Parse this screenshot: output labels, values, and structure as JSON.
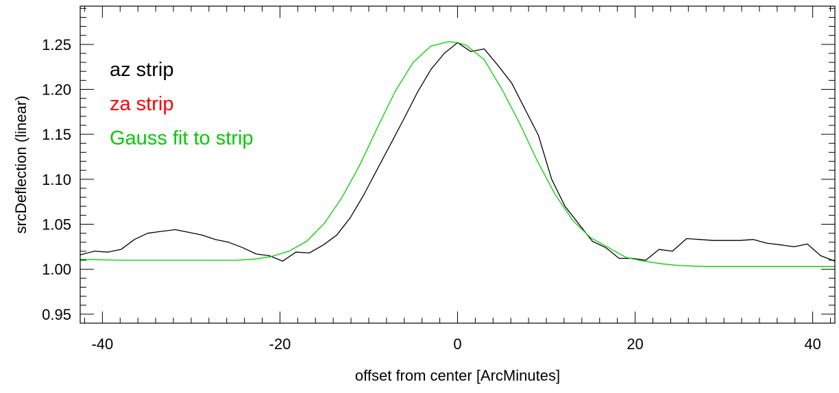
{
  "chart_data": {
    "type": "line",
    "title": "",
    "xlabel": "offset from center [ArcMinutes]",
    "ylabel": "srcDeflection (linear)",
    "xlim": [
      -42.5,
      42.5
    ],
    "ylim": [
      0.94,
      1.2925
    ],
    "x_ticks": [
      -40,
      -20,
      0,
      20,
      40
    ],
    "x_tick_labels": [
      "-40",
      "-20",
      "0",
      "20",
      "40"
    ],
    "x_minor_step": 2,
    "y_ticks": [
      0.95,
      1.0,
      1.05,
      1.1,
      1.15,
      1.2,
      1.25
    ],
    "y_tick_labels": [
      "0.95",
      "1.00",
      "1.05",
      "1.10",
      "1.15",
      "1.20",
      "1.25"
    ],
    "y_minor_step": 0.01,
    "grid": false,
    "legend": {
      "placement": "top-left",
      "entries": [
        {
          "label": "az strip",
          "color": "#000000"
        },
        {
          "label": "za strip",
          "color": "#ff0000"
        },
        {
          "label": "Gauss fit to strip",
          "color": "#00cc00"
        }
      ]
    },
    "series": [
      {
        "name": "az strip",
        "color": "#000000",
        "x": [
          -42.5,
          -40.9,
          -39.4,
          -37.9,
          -36.4,
          -34.9,
          -33.4,
          -31.8,
          -30.3,
          -28.8,
          -27.3,
          -25.8,
          -24.2,
          -22.7,
          -21.2,
          -19.7,
          -18.2,
          -16.7,
          -15.1,
          -13.6,
          -12.1,
          -10.6,
          -9.1,
          -7.6,
          -6.0,
          -4.5,
          -3.0,
          -1.5,
          0.0,
          1.5,
          3.0,
          4.6,
          6.1,
          7.6,
          9.1,
          10.6,
          12.1,
          13.6,
          15.2,
          16.7,
          18.2,
          19.7,
          21.2,
          22.7,
          24.2,
          25.8,
          27.3,
          28.8,
          30.3,
          31.8,
          33.3,
          34.8,
          36.4,
          37.9,
          39.4,
          40.9,
          42.5
        ],
        "y": [
          1.016,
          1.02,
          1.019,
          1.022,
          1.033,
          1.04,
          1.042,
          1.044,
          1.041,
          1.038,
          1.033,
          1.03,
          1.024,
          1.017,
          1.015,
          1.009,
          1.019,
          1.018,
          1.027,
          1.038,
          1.057,
          1.082,
          1.11,
          1.138,
          1.168,
          1.197,
          1.222,
          1.24,
          1.252,
          1.242,
          1.245,
          1.226,
          1.207,
          1.178,
          1.149,
          1.1,
          1.07,
          1.051,
          1.031,
          1.024,
          1.012,
          1.012,
          1.01,
          1.022,
          1.02,
          1.034,
          1.033,
          1.032,
          1.032,
          1.032,
          1.033,
          1.029,
          1.027,
          1.025,
          1.028,
          1.015,
          1.009
        ]
      },
      {
        "name": "Gauss fit to strip",
        "color": "#00cc00",
        "x": [
          -42.5,
          -38,
          -34,
          -30,
          -27,
          -25,
          -23,
          -21,
          -19,
          -17,
          -15,
          -13,
          -11,
          -9,
          -7,
          -5,
          -3,
          -1,
          0,
          1,
          3,
          5,
          7,
          9,
          11,
          13,
          15,
          17,
          19,
          21,
          23,
          25,
          28,
          32,
          36,
          40,
          42.5
        ],
        "y": [
          1.011,
          1.01,
          1.01,
          1.01,
          1.01,
          1.01,
          1.011,
          1.014,
          1.02,
          1.031,
          1.051,
          1.08,
          1.116,
          1.158,
          1.198,
          1.23,
          1.248,
          1.253,
          1.252,
          1.249,
          1.233,
          1.2,
          1.162,
          1.12,
          1.083,
          1.054,
          1.035,
          1.024,
          1.013,
          1.009,
          1.006,
          1.004,
          1.003,
          1.003,
          1.003,
          1.003,
          1.003
        ]
      }
    ]
  }
}
